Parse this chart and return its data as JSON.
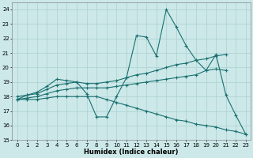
{
  "xlabel": "Humidex (Indice chaleur)",
  "bg_color": "#cce8e8",
  "grid_color": "#aad0d0",
  "line_color": "#1a7070",
  "xlim": [
    -0.5,
    23.5
  ],
  "ylim": [
    15,
    24.5
  ],
  "yticks": [
    15,
    16,
    17,
    18,
    19,
    20,
    21,
    22,
    23,
    24
  ],
  "xticks": [
    0,
    1,
    2,
    3,
    4,
    5,
    6,
    7,
    8,
    9,
    10,
    11,
    12,
    13,
    14,
    15,
    16,
    17,
    18,
    19,
    20,
    21,
    22,
    23
  ],
  "line1_x": [
    0,
    1,
    2,
    3,
    4,
    5,
    6,
    7,
    8,
    9,
    10,
    11,
    12,
    13,
    14,
    15,
    16,
    17,
    18,
    19,
    20,
    21,
    22,
    23
  ],
  "line1_y": [
    17.8,
    18.1,
    18.3,
    18.7,
    19.2,
    19.1,
    19.0,
    18.2,
    16.6,
    16.6,
    18.0,
    19.3,
    22.2,
    22.1,
    20.8,
    24.0,
    22.8,
    21.5,
    20.5,
    19.8,
    20.9,
    18.1,
    16.7,
    15.4
  ],
  "line2_x": [
    0,
    1,
    2,
    3,
    4,
    5,
    6,
    7,
    8,
    9,
    10,
    11,
    12,
    13,
    14,
    15,
    16,
    17,
    18,
    19,
    20,
    21
  ],
  "line2_y": [
    18.0,
    18.1,
    18.2,
    18.5,
    18.8,
    18.9,
    19.0,
    18.9,
    18.9,
    19.0,
    19.1,
    19.3,
    19.5,
    19.6,
    19.8,
    20.0,
    20.2,
    20.3,
    20.5,
    20.6,
    20.8,
    20.9
  ],
  "line3_x": [
    0,
    1,
    2,
    3,
    4,
    5,
    6,
    7,
    8,
    9,
    10,
    11,
    12,
    13,
    14,
    15,
    16,
    17,
    18,
    19,
    20,
    21
  ],
  "line3_y": [
    17.8,
    17.9,
    18.0,
    18.2,
    18.4,
    18.5,
    18.6,
    18.6,
    18.6,
    18.6,
    18.7,
    18.8,
    18.9,
    19.0,
    19.1,
    19.2,
    19.3,
    19.4,
    19.5,
    19.8,
    19.9,
    19.8
  ],
  "line4_x": [
    0,
    1,
    2,
    3,
    4,
    5,
    6,
    7,
    8,
    9,
    10,
    11,
    12,
    13,
    14,
    15,
    16,
    17,
    18,
    19,
    20,
    21,
    22,
    23
  ],
  "line4_y": [
    17.8,
    17.8,
    17.8,
    17.9,
    18.0,
    18.0,
    18.0,
    18.0,
    18.0,
    17.8,
    17.6,
    17.4,
    17.2,
    17.0,
    16.8,
    16.6,
    16.4,
    16.3,
    16.1,
    16.0,
    15.9,
    15.7,
    15.6,
    15.4
  ]
}
